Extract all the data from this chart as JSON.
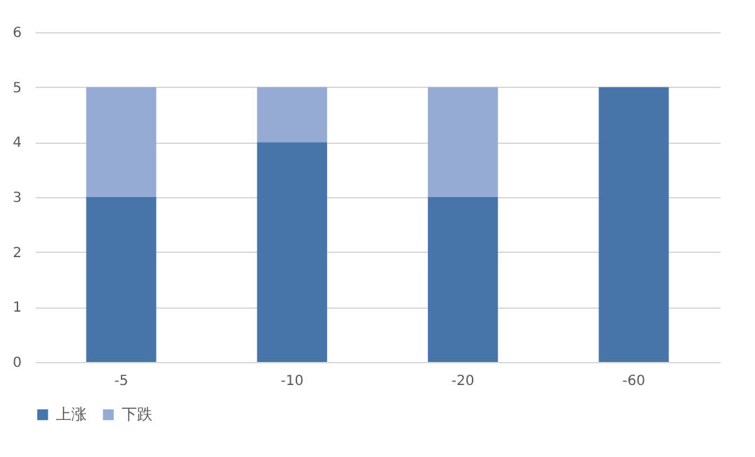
{
  "chart_data": {
    "type": "bar",
    "stacked": true,
    "categories": [
      "-5",
      "-10",
      "-20",
      "-60"
    ],
    "series": [
      {
        "name": "上涨",
        "color": "#4774a9",
        "values": [
          3,
          4,
          3,
          5
        ]
      },
      {
        "name": "下跌",
        "color": "#96abd4",
        "values": [
          2,
          1,
          2,
          0
        ]
      }
    ],
    "ylim": [
      0,
      6
    ],
    "yticks": [
      0,
      1,
      2,
      3,
      4,
      5,
      6
    ],
    "grid": "y",
    "legend": "bottom"
  }
}
